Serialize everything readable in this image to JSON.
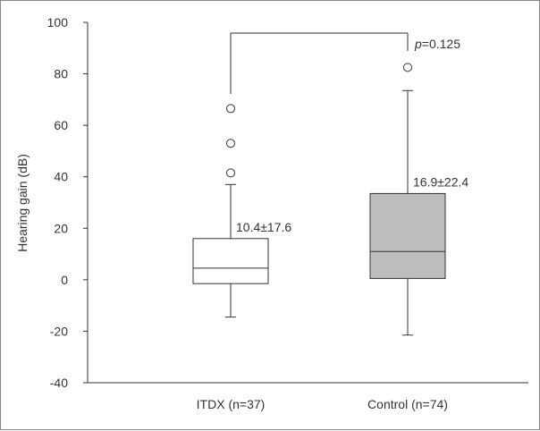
{
  "chart_data": {
    "type": "boxplot",
    "ylabel": "Hearing gain (dB)",
    "ylim": [
      -40,
      100
    ],
    "yticks": [
      -40,
      -20,
      0,
      20,
      40,
      60,
      80,
      100
    ],
    "grid": false,
    "categories": [
      "ITDX (n=37)",
      "Control (n=74)"
    ],
    "boxes": [
      {
        "category": "ITDX (n=37)",
        "whisker_low": -14.5,
        "q1": -1.5,
        "median": 4.5,
        "q3": 16,
        "whisker_high": 37,
        "outliers": [
          41.5,
          53,
          66.5
        ],
        "fill": "#ffffff",
        "stat_label": "10.4±17.6"
      },
      {
        "category": "Control (n=74)",
        "whisker_low": -21.5,
        "q1": 0.5,
        "median": 11,
        "q3": 33.5,
        "whisker_high": 73.5,
        "outliers": [
          82.5
        ],
        "fill": "#bdbdbd",
        "stat_label": "16.9±22.4"
      }
    ],
    "comparison": {
      "p_symbol": "p",
      "p_value": "=0.125"
    }
  }
}
